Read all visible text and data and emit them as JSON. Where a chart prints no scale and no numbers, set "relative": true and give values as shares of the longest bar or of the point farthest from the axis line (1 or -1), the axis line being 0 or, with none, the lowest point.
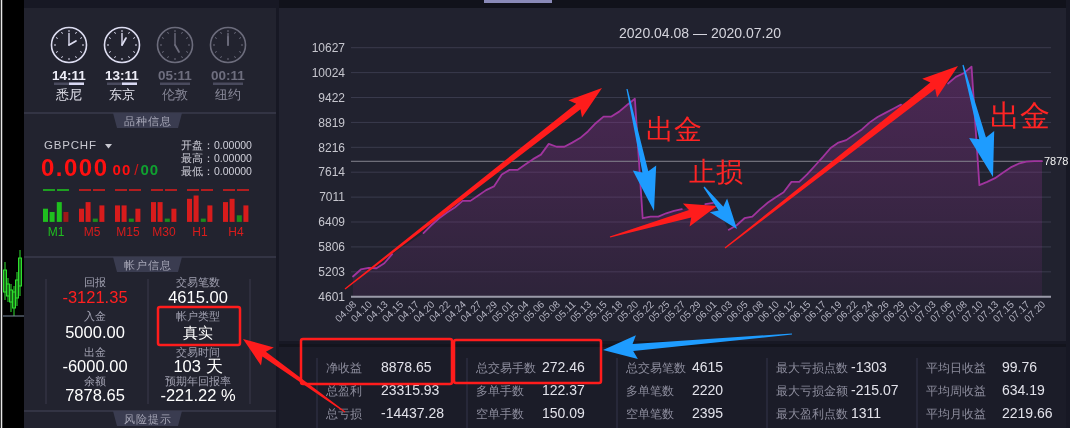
{
  "chart_data": [
    {
      "type": "other",
      "annotations": [
        "14:11",
        "悉尼",
        "13:11",
        "东京",
        "05:11",
        "伦敦",
        "00:11",
        "纽约"
      ]
    },
    {
      "type": "other",
      "title": "品种信息",
      "annotations": [
        "GBPCHF",
        "0.000",
        "00",
        "/",
        "00",
        "开盘：0.00000",
        "最高：0.00000",
        "最低：0.00000"
      ]
    },
    {
      "type": "bar",
      "relative": true,
      "categories": [
        "M1",
        "M5",
        "M15",
        "M30",
        "H1",
        "H4"
      ],
      "series": [
        {
          "values": [
            0.5,
            0.5,
            0.625,
            0.75,
            0.875,
            0.75
          ],
          "colors": [
            "#1fbf1f",
            "#d81c1c",
            "#d81c1c",
            "#d81c1c",
            "#d81c1c",
            "#d81c1c"
          ]
        },
        {
          "values": [
            0.375,
            0.75,
            0.625,
            0.75,
            1,
            0.875
          ],
          "colors": [
            "#1fbf1f",
            "#d81c1c",
            "#d81c1c",
            "#d81c1c",
            "#d81c1c",
            "#d81c1c"
          ]
        },
        {
          "values": [
            0.75,
            0.125,
            0.125,
            0.125,
            0.125,
            0.25
          ],
          "colors": [
            "#1fbf1f",
            "#1c8c1c",
            "#1c8c1c",
            "#1c8c1c",
            "#1c8c1c",
            "#1c8c1c"
          ]
        },
        {
          "values": [
            0.375,
            0.625,
            0.5,
            0.5,
            0.625,
            0.625
          ],
          "colors": [
            "#a01818",
            "#d81c1c",
            "#d81c1c",
            "#d81c1c",
            "#d81c1c",
            "#d81c1c"
          ]
        }
      ]
    },
    {
      "type": "other",
      "title": "帐户信息",
      "annotations": [
        "回报",
        "-3121.35",
        "入金",
        "5000.00",
        "出金",
        "-6000.00",
        "余额",
        "7878.65",
        "交易笔数",
        "4615.00",
        "帐户类型",
        "真实",
        "交易时间",
        "103 天",
        "预期年回报率",
        "-221.22 %"
      ]
    },
    {
      "type": "other",
      "title": "风险提示"
    },
    {
      "type": "area",
      "title": "2020.04.08 — 2020.07.20",
      "categories": [
        "04.08",
        null,
        "04.10",
        null,
        "04.13",
        null,
        "04.15",
        null,
        "04.17",
        null,
        "04.20",
        null,
        "04.22",
        null,
        "04.24",
        null,
        "04.27",
        null,
        "04.29",
        null,
        "05.01",
        null,
        "05.04",
        null,
        "05.06",
        null,
        "05.08",
        null,
        "05.11",
        null,
        "05.13",
        null,
        "05.15",
        null,
        "05.18",
        null,
        "05.20",
        null,
        "05.22",
        null,
        "05.25",
        null,
        "05.27",
        null,
        "05.29",
        null,
        "06.01",
        null,
        "06.03",
        null,
        "06.05",
        null,
        "06.08",
        null,
        "06.10",
        null,
        "06.12",
        null,
        "06.15",
        null,
        "06.17",
        null,
        "06.19",
        null,
        "06.22",
        null,
        "06.24",
        null,
        "06.26",
        null,
        "06.29",
        null,
        "07.01",
        null,
        "07.03",
        null,
        "07.06",
        null,
        "07.08",
        null,
        "07.10",
        null,
        "07.13",
        null,
        "07.15",
        null,
        "07.17",
        null,
        "07.20"
      ],
      "series": [
        {
          "color": "#a0349e",
          "values": [
            5090,
            5260,
            5300,
            5290,
            5410,
            5630,
            null,
            null,
            null,
            6140,
            6330,
            6500,
            6640,
            6760,
            6920,
            6920,
            7050,
            7180,
            7270,
            7560,
            7670,
            7670,
            7800,
            7930,
            8040,
            8300,
            8230,
            8230,
            8330,
            8440,
            8600,
            8800,
            8960,
            8960,
            9080,
            9240,
            9390,
            6500,
            6540,
            6540,
            6620,
            6680,
            6720,
            null,
            null,
            6840,
            6870,
            null,
            6220,
            6330,
            6500,
            6540,
            6720,
            6880,
            7010,
            7130,
            7380,
            7380,
            7560,
            7770,
            7980,
            8200,
            8330,
            8390,
            8520,
            8650,
            8820,
            8950,
            9050,
            9150,
            9250,
            null,
            null,
            null,
            null,
            null,
            9760,
            9920,
            10010,
            10170,
            7300,
            7380,
            7470,
            7600,
            7730,
            7820,
            7870,
            7880,
            7880
          ]
        }
      ],
      "ylim": [
        4601,
        10627
      ],
      "yticks": [
        4601,
        5203,
        5806,
        6409,
        7011,
        7614,
        8216,
        8819,
        9422,
        10024,
        10627
      ],
      "grid": "y",
      "ref_lines": [
        {
          "axis": "y",
          "value": 7878,
          "label": "7878"
        }
      ],
      "annotations": [
        "出金",
        "止损",
        "出金"
      ]
    },
    {
      "type": "other",
      "annotations": [
        "净收益",
        "8878.65",
        "总交易手数",
        "272.46",
        "总交易笔数",
        "4615",
        "最大亏损点数",
        "-1303",
        "平均日收益",
        "99.76",
        "总盈利",
        "23315.93",
        "多单手数",
        "122.37",
        "多单笔数",
        "2220",
        "最大亏损金额",
        "-215.07",
        "平均周收益",
        "634.19",
        "总亏损",
        "-14437.28",
        "空单手数",
        "150.09",
        "空单笔数",
        "2395",
        "最大盈利点数",
        "1311",
        "平均月收益",
        "2219.66"
      ]
    }
  ]
}
